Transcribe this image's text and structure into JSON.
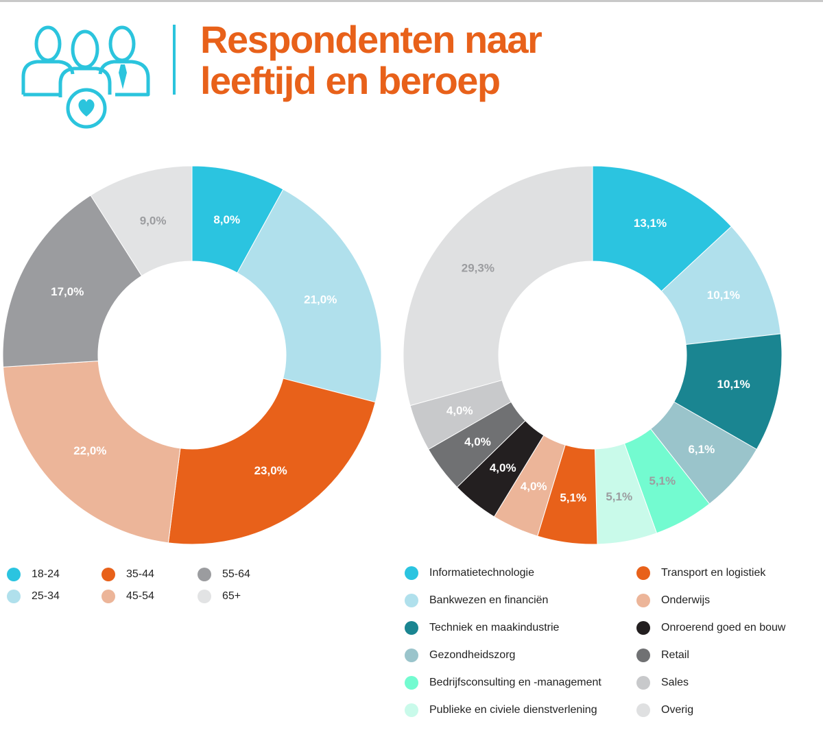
{
  "page": {
    "title": "Respondenten naar\nleeftijd en beroep"
  },
  "colors": {
    "accent": "#e8611a",
    "icon": "#2bc4dd"
  },
  "chart_data": [
    {
      "type": "pie",
      "donut": true,
      "labels": [
        "18-24",
        "25-34",
        "35-44",
        "45-54",
        "55-64",
        "65+"
      ],
      "values": [
        8.0,
        21.0,
        23.0,
        22.0,
        17.0,
        9.0
      ],
      "value_labels": [
        "8,0%",
        "21,0%",
        "23,0%",
        "22,0%",
        "17,0%",
        "9,0%"
      ],
      "colors": [
        "#2bc4e0",
        "#b0e0ec",
        "#e8611a",
        "#ecb599",
        "#9b9c9f",
        "#e2e3e4"
      ],
      "label_colors": [
        "#ffffff",
        "#ffffff",
        "#ffffff",
        "#ffffff",
        "#ffffff",
        "#9b9c9f"
      ],
      "legend_position": "bottom",
      "legend_columns": [
        [
          "18-24",
          "25-34"
        ],
        [
          "35-44",
          "45-54"
        ],
        [
          "55-64",
          "65+"
        ]
      ]
    },
    {
      "type": "pie",
      "donut": true,
      "labels": [
        "Informatietechnologie",
        "Bankwezen en financiën",
        "Techniek en maakindustrie",
        "Gezondheidszorg",
        "Bedrijfsconsulting en -management",
        "Publieke en civiele dienstverlening",
        "Transport en logistiek",
        "Onderwijs",
        "Onroerend goed en bouw",
        "Retail",
        "Sales",
        "Overig"
      ],
      "values": [
        13.1,
        10.1,
        10.1,
        6.1,
        5.1,
        5.1,
        5.1,
        4.0,
        4.0,
        4.0,
        4.0,
        29.3
      ],
      "value_labels": [
        "13,1%",
        "10,1%",
        "10,1%",
        "6,1%",
        "5,1%",
        "5,1%",
        "5,1%",
        "4,0%",
        "4,0%",
        "4,0%",
        "4,0%",
        "29,3%"
      ],
      "colors": [
        "#2bc4e0",
        "#b0e0ec",
        "#1a8591",
        "#9ac4cb",
        "#73fbd0",
        "#c9faea",
        "#e8611a",
        "#ecb599",
        "#231f20",
        "#707173",
        "#c8c9cb",
        "#dfe0e1"
      ],
      "label_colors": [
        "#ffffff",
        "#ffffff",
        "#ffffff",
        "#ffffff",
        "#9b9c9f",
        "#9b9c9f",
        "#ffffff",
        "#ffffff",
        "#ffffff",
        "#ffffff",
        "#ffffff",
        "#9b9c9f"
      ],
      "legend_position": "bottom",
      "legend_columns": [
        [
          "Informatietechnologie",
          "Bankwezen en financiën",
          "Techniek en maakindustrie",
          "Gezondheidszorg",
          "Bedrijfsconsulting en -management",
          "Publieke en civiele dienstverlening"
        ],
        [
          "Transport en logistiek",
          "Onderwijs",
          "Onroerend goed en bouw",
          "Retail",
          "Sales",
          "Overig"
        ]
      ]
    }
  ]
}
